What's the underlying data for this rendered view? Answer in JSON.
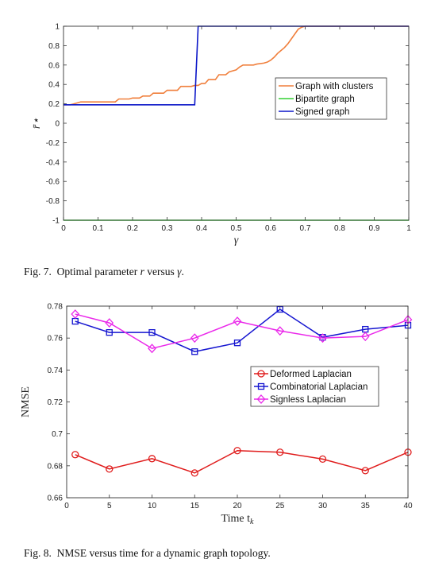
{
  "fig7": {
    "caption_label": "Fig. 7.",
    "caption_text_1": "Optimal parameter",
    "caption_var_1": "r",
    "caption_text_2": "versus",
    "caption_var_2": "γ",
    "caption_end": ".",
    "chart_data": {
      "type": "line",
      "xlabel": "γ",
      "ylabel": "r̄⋆",
      "xlim": [
        0,
        1
      ],
      "ylim": [
        -1,
        1
      ],
      "xticks": [
        0,
        0.1,
        0.2,
        0.3,
        0.4,
        0.5,
        0.6,
        0.7,
        0.8,
        0.9,
        1
      ],
      "xtick_labels": [
        "0",
        "0.1",
        "0.2",
        "0.3",
        "0.4",
        "0.5",
        "0.6",
        "0.7",
        "0.8",
        "0.9",
        "1"
      ],
      "yticks": [
        -1,
        -0.8,
        -0.6,
        -0.4,
        -0.2,
        0,
        0.2,
        0.4,
        0.6,
        0.8,
        1
      ],
      "ytick_labels": [
        "-1",
        "-0.8",
        "-0.6",
        "-0.4",
        "-0.2",
        "0",
        "0.2",
        "0.4",
        "0.6",
        "0.8",
        "1"
      ],
      "grid": false,
      "legend_position": "center-right",
      "series": [
        {
          "name": "Graph with clusters",
          "color": "#f07f3c",
          "x": [
            0,
            0.02,
            0.03,
            0.05,
            0.1,
            0.15,
            0.16,
            0.19,
            0.2,
            0.22,
            0.23,
            0.25,
            0.26,
            0.29,
            0.3,
            0.33,
            0.34,
            0.37,
            0.38,
            0.39,
            0.4,
            0.41,
            0.42,
            0.44,
            0.45,
            0.47,
            0.48,
            0.49,
            0.5,
            0.51,
            0.52,
            0.55,
            0.56,
            0.58,
            0.59,
            0.6,
            0.61,
            0.62,
            0.63,
            0.64,
            0.65,
            0.66,
            0.67,
            0.68,
            0.69,
            0.7,
            1
          ],
          "y": [
            0.19,
            0.19,
            0.2,
            0.22,
            0.22,
            0.22,
            0.25,
            0.25,
            0.26,
            0.26,
            0.28,
            0.28,
            0.31,
            0.31,
            0.34,
            0.34,
            0.38,
            0.38,
            0.39,
            0.39,
            0.41,
            0.41,
            0.45,
            0.45,
            0.5,
            0.5,
            0.53,
            0.54,
            0.55,
            0.58,
            0.6,
            0.6,
            0.61,
            0.62,
            0.63,
            0.65,
            0.68,
            0.72,
            0.75,
            0.78,
            0.82,
            0.87,
            0.92,
            0.97,
            0.99,
            1,
            1
          ]
        },
        {
          "name": "Bipartite graph",
          "color": "#33d133",
          "x": [
            0,
            1
          ],
          "y": [
            -1,
            -1
          ]
        },
        {
          "name": "Signed graph",
          "color": "#0b16c8",
          "x": [
            0,
            0.38,
            0.39,
            1
          ],
          "y": [
            0.19,
            0.19,
            1,
            1
          ]
        }
      ]
    }
  },
  "fig8": {
    "caption_label": "Fig. 8.",
    "caption_text": "NMSE versus time for a dynamic graph topology.",
    "chart_data": {
      "type": "line",
      "xlabel": "Time t",
      "xlabel_sub": "k",
      "ylabel": "NMSE",
      "xlim": [
        0,
        40
      ],
      "ylim": [
        0.66,
        0.78
      ],
      "xticks": [
        0,
        5,
        10,
        15,
        20,
        25,
        30,
        35,
        40
      ],
      "xtick_labels": [
        "0",
        "5",
        "10",
        "15",
        "20",
        "25",
        "30",
        "35",
        "40"
      ],
      "yticks": [
        0.66,
        0.68,
        0.7,
        0.72,
        0.74,
        0.76,
        0.78
      ],
      "ytick_labels": [
        "0.66",
        "0.68",
        "0.7",
        "0.72",
        "0.74",
        "0.76",
        "0.78"
      ],
      "grid": false,
      "legend_position": "center-right",
      "x": [
        1,
        5,
        10,
        15,
        20,
        25,
        30,
        35,
        40
      ],
      "series": [
        {
          "name": "Deformed Laplacian",
          "color": "#e01c1c",
          "marker": "circle",
          "values": [
            0.687,
            0.678,
            0.6845,
            0.6755,
            0.6895,
            0.6885,
            0.6842,
            0.677,
            0.6885
          ]
        },
        {
          "name": "Combinatorial Laplacian",
          "color": "#1515d0",
          "marker": "square",
          "values": [
            0.7705,
            0.7635,
            0.7635,
            0.7515,
            0.757,
            0.778,
            0.7605,
            0.7655,
            0.768
          ]
        },
        {
          "name": "Signless Laplacian",
          "color": "#ea28ea",
          "marker": "diamond",
          "values": [
            0.775,
            0.7695,
            0.7535,
            0.76,
            0.7705,
            0.7645,
            0.76,
            0.761,
            0.7715
          ]
        }
      ]
    }
  }
}
